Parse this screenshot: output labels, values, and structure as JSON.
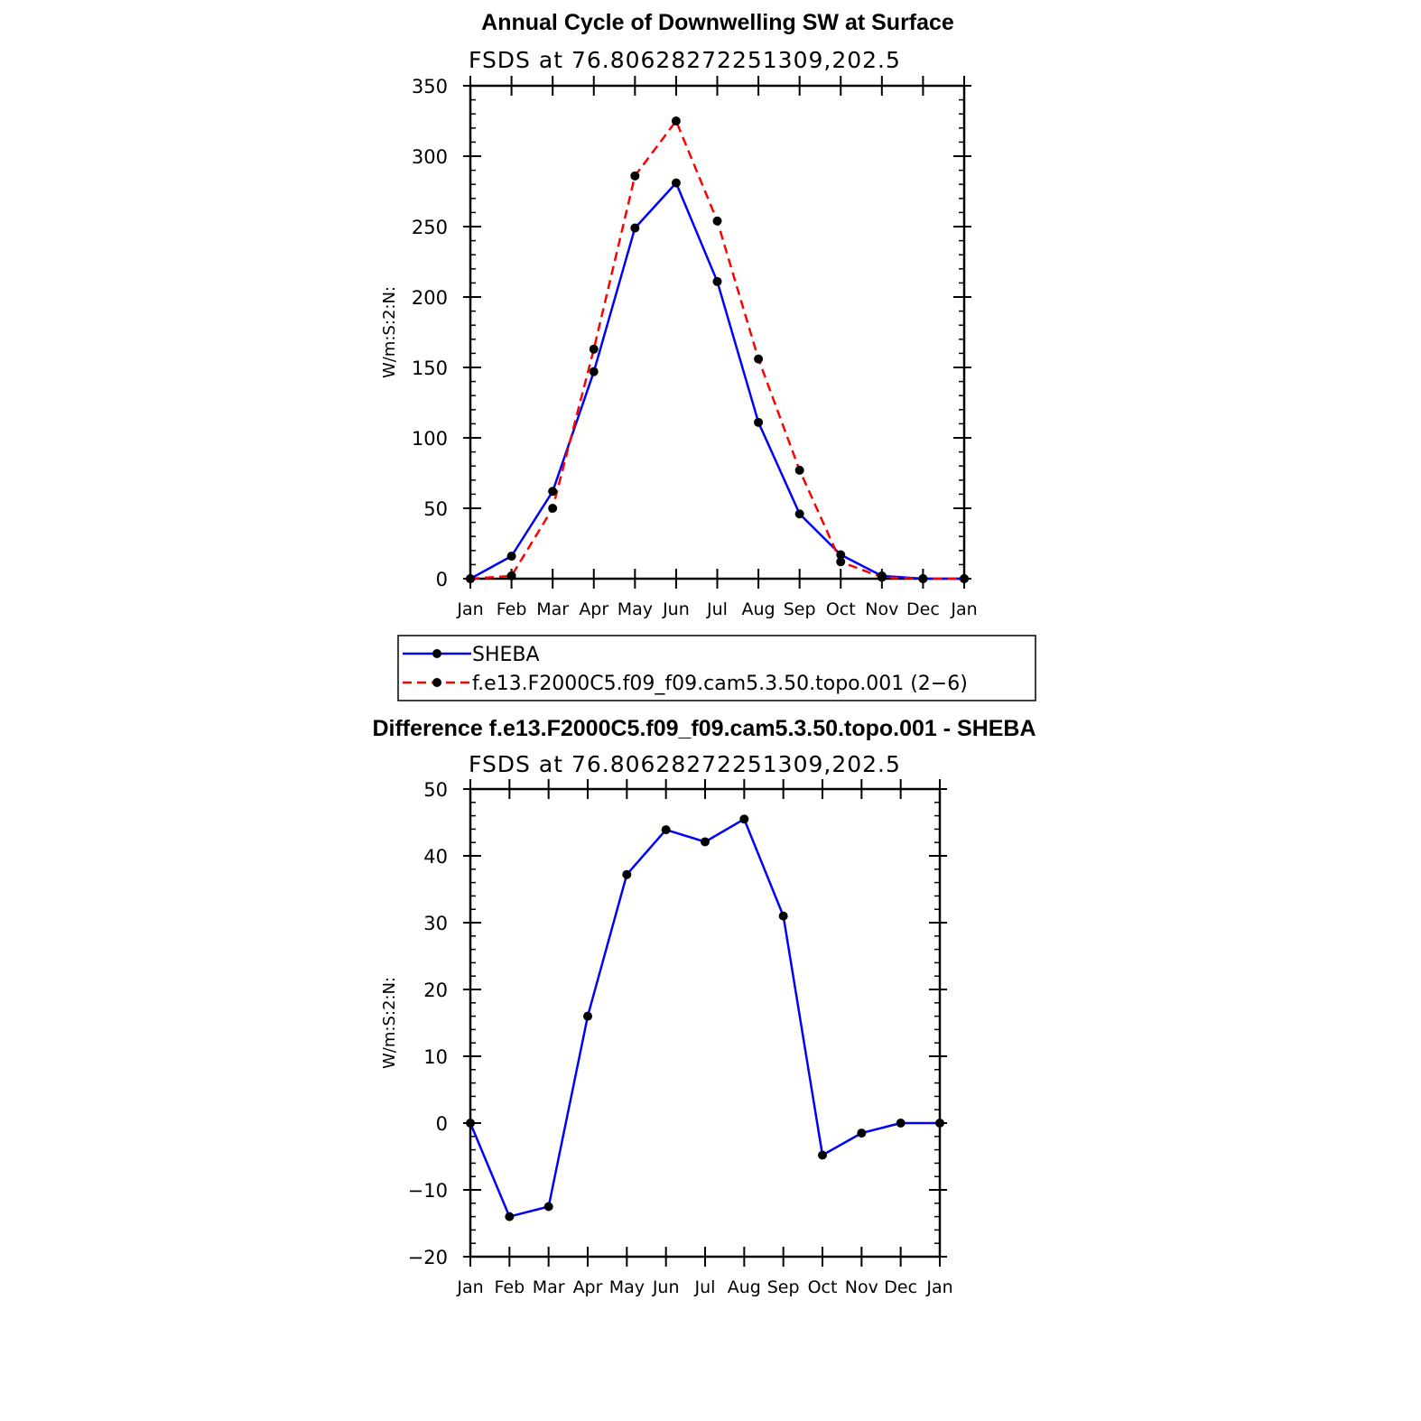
{
  "chart_data": [
    {
      "type": "line",
      "title": "Annual Cycle of Downwelling SW at Surface",
      "subtitle": "FSDS at 76.80628272251309,202.5",
      "ylabel": "W/m:S:2:N:",
      "xlabel": "",
      "ylim": [
        0,
        350
      ],
      "yticks": [
        0,
        50,
        100,
        150,
        200,
        250,
        300,
        350
      ],
      "categories": [
        "Jan",
        "Feb",
        "Mar",
        "Apr",
        "May",
        "Jun",
        "Jul",
        "Aug",
        "Sep",
        "Oct",
        "Nov",
        "Dec",
        "Jan"
      ],
      "grid": false,
      "legend_position": "below",
      "series": [
        {
          "name": "SHEBA",
          "color": "#0000ff",
          "dash": "solid",
          "values": [
            0,
            16,
            62,
            147,
            249,
            281,
            211,
            111,
            46,
            17,
            2,
            0,
            0
          ]
        },
        {
          "name": "f.e13.F2000C5.f09_f09.cam5.3.50.topo.001 (2−6)",
          "color": "#ff0000",
          "dash": "dashed",
          "values": [
            0,
            2,
            50,
            163,
            286,
            325,
            254,
            156,
            77,
            12,
            1,
            0,
            0
          ]
        }
      ]
    },
    {
      "type": "line",
      "title": "Difference f.e13.F2000C5.f09_f09.cam5.3.50.topo.001 - SHEBA",
      "subtitle": "FSDS at 76.80628272251309,202.5",
      "ylabel": "W/m:S:2:N:",
      "xlabel": "",
      "ylim": [
        -20,
        50
      ],
      "yticks": [
        -20,
        -10,
        0,
        10,
        20,
        30,
        40,
        50
      ],
      "categories": [
        "Jan",
        "Feb",
        "Mar",
        "Apr",
        "May",
        "Jun",
        "Jul",
        "Aug",
        "Sep",
        "Oct",
        "Nov",
        "Dec",
        "Jan"
      ],
      "grid": false,
      "series": [
        {
          "color": "#0000ff",
          "dash": "solid",
          "values": [
            0,
            -14,
            -12.5,
            16,
            37.2,
            43.9,
            42.1,
            45.5,
            31,
            -4.8,
            -1.5,
            0,
            0
          ]
        }
      ]
    }
  ]
}
